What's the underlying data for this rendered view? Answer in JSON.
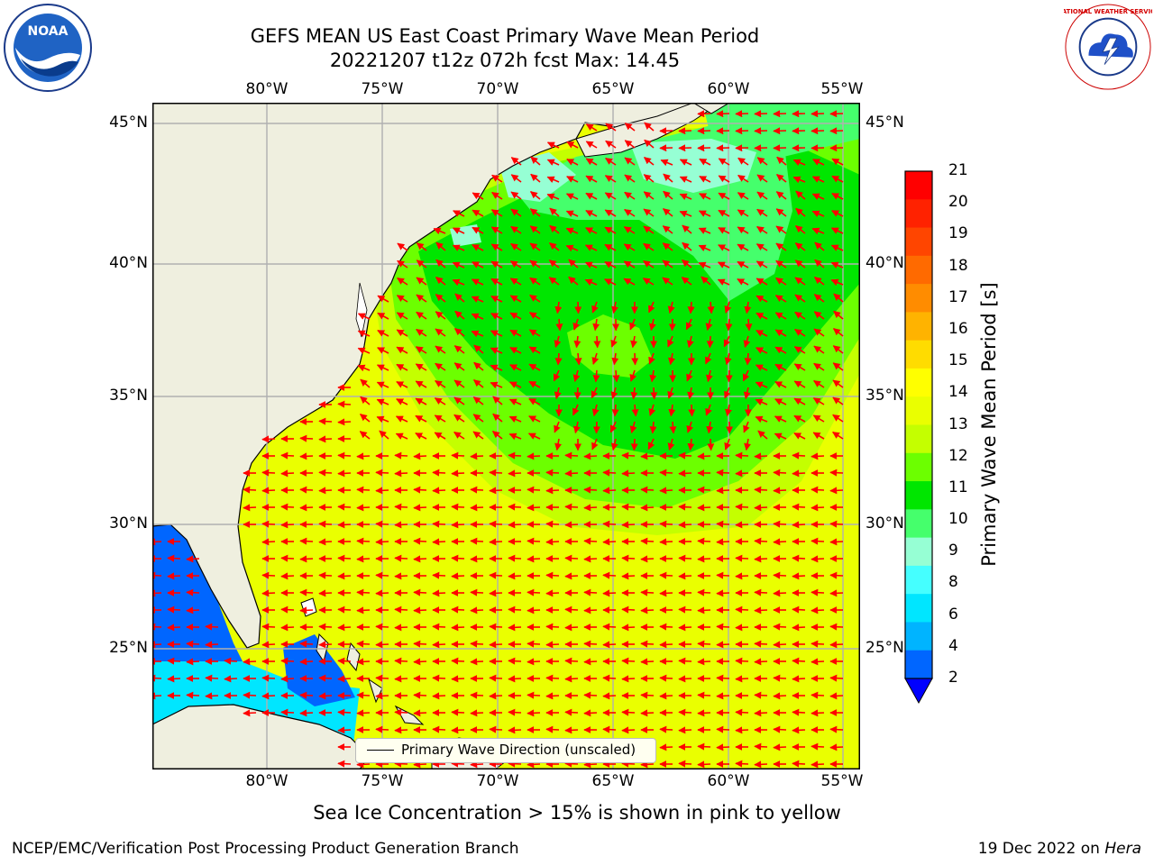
{
  "title": {
    "line1": "GEFS MEAN US East Coast Primary Wave Mean Period",
    "line2": "20221207 t12z 072h fcst   Max: 14.45"
  },
  "map": {
    "lon_labels": [
      "80°W",
      "75°W",
      "70°W",
      "65°W",
      "60°W",
      "55°W"
    ],
    "lat_labels": [
      "45°N",
      "40°N",
      "35°N",
      "30°N",
      "25°N"
    ],
    "lon_range": [
      -85,
      -54
    ],
    "lat_range": [
      20.5,
      46.3
    ],
    "legend_label": "Primary Wave Direction (unscaled)",
    "arrow_color": "#ff0000",
    "land_color": "#efefdf",
    "grid_color": "#b0b0b0"
  },
  "colorbar": {
    "label": "Primary Wave Mean Period [s]",
    "ticks": [
      "21",
      "20",
      "19",
      "18",
      "17",
      "16",
      "15",
      "14",
      "13",
      "12",
      "11",
      "10",
      "9",
      "8",
      "6",
      "4",
      "2"
    ],
    "colors_top_to_bottom": [
      "#ff0000",
      "#ff2200",
      "#ff4500",
      "#ff6a00",
      "#ff8c00",
      "#ffb300",
      "#ffdc00",
      "#ffff00",
      "#eaff00",
      "#c4ff00",
      "#6cff00",
      "#00e600",
      "#45ff6c",
      "#96ffd4",
      "#45ffff",
      "#00e6ff",
      "#00b4ff",
      "#0066ff"
    ],
    "under_color": "#0000ff"
  },
  "subtitle": "Sea Ice Concentration > 15% is shown in pink to yellow",
  "footer": {
    "left": "NCEP/EMC/Verification Post Processing Product Generation Branch",
    "right_date": "19 Dec 2022 on ",
    "right_machine": "Hera"
  },
  "logos": {
    "noaa_text": "NOAA",
    "nws_text": "NATIONAL WEATHER SERVICE"
  }
}
